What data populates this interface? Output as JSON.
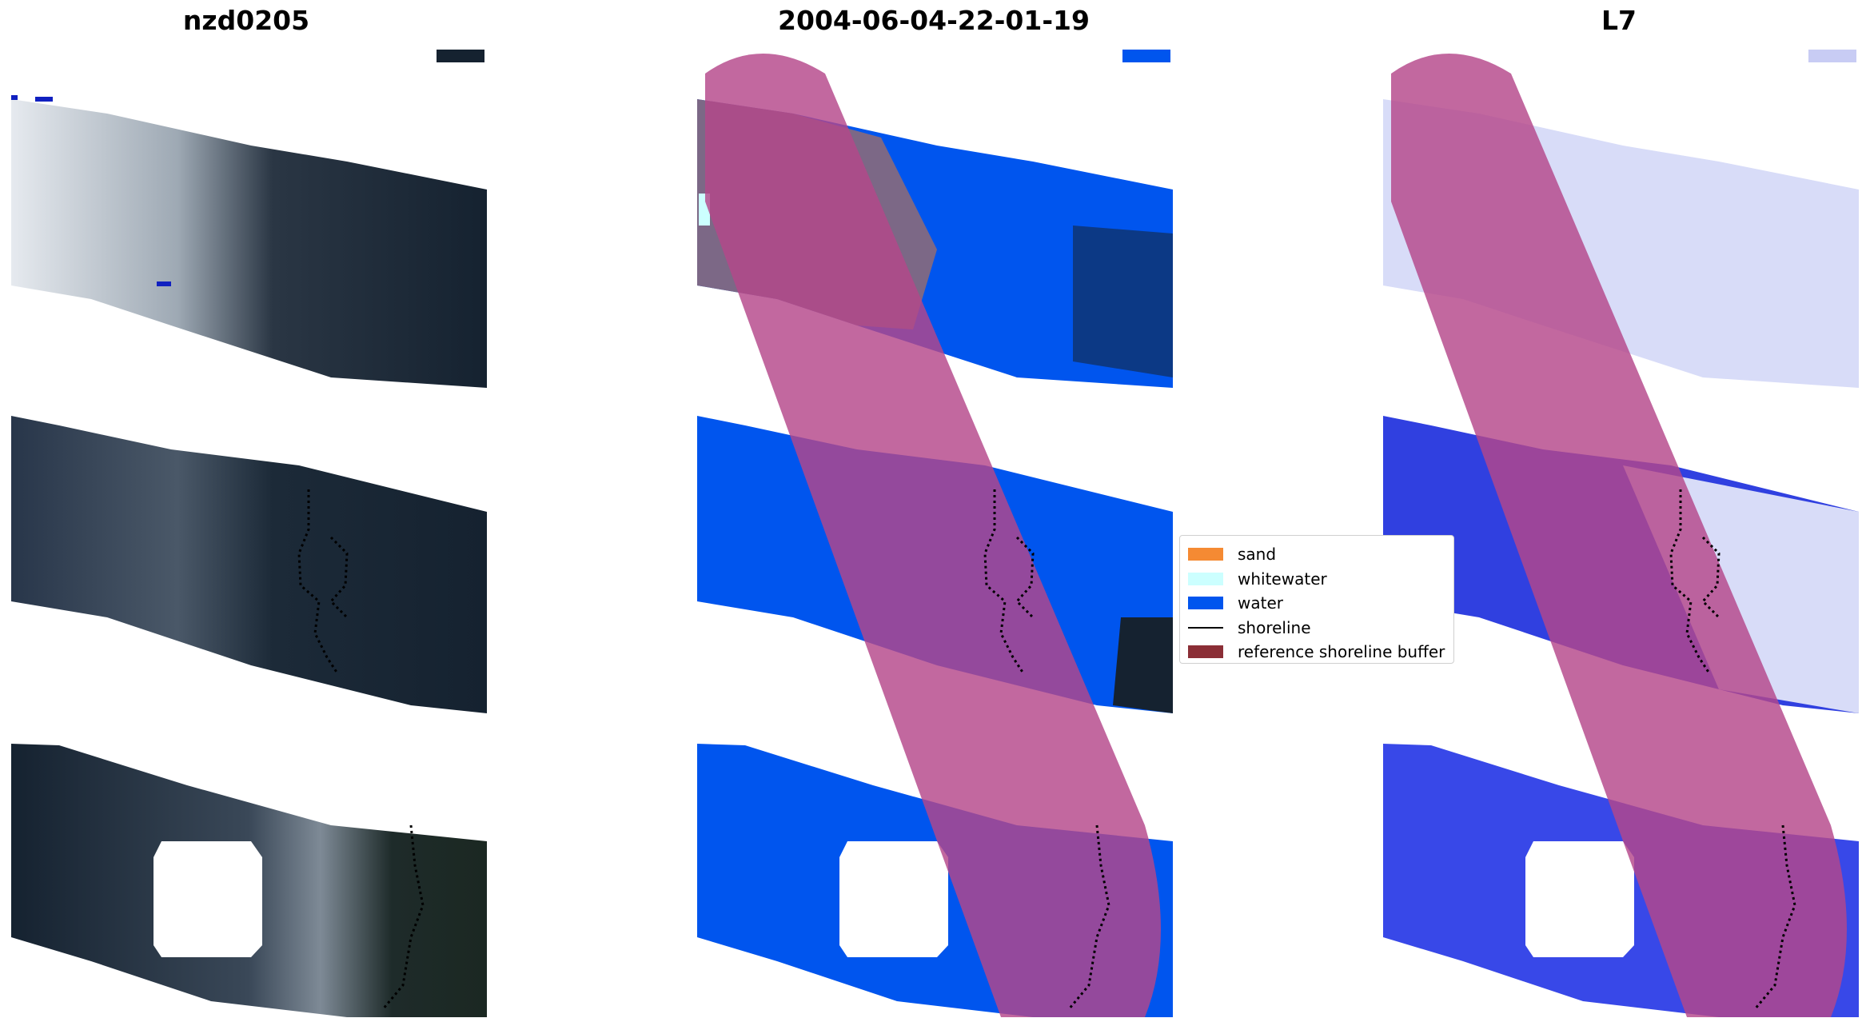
{
  "panels": [
    {
      "title": "nzd0205"
    },
    {
      "title": "2004-06-04-22-01-19"
    },
    {
      "title": "L7"
    }
  ],
  "legend": {
    "items": [
      {
        "label": "sand",
        "color": "#f58a33"
      },
      {
        "label": "whitewater",
        "color": "#ccffff"
      },
      {
        "label": "water",
        "color": "#0055ee"
      },
      {
        "label": "shoreline",
        "color": "#000000",
        "kind": "line"
      },
      {
        "label": "reference shoreline buffer",
        "color": "#8b2e36"
      }
    ]
  },
  "colors": {
    "dark_ocean": "#152230",
    "cloud": "#c8d2dc",
    "water_class": "#0055ee",
    "buffer_overlay": "#b4478a",
    "index_light": "#d8dcf8",
    "index_dark": "#3040e0"
  }
}
